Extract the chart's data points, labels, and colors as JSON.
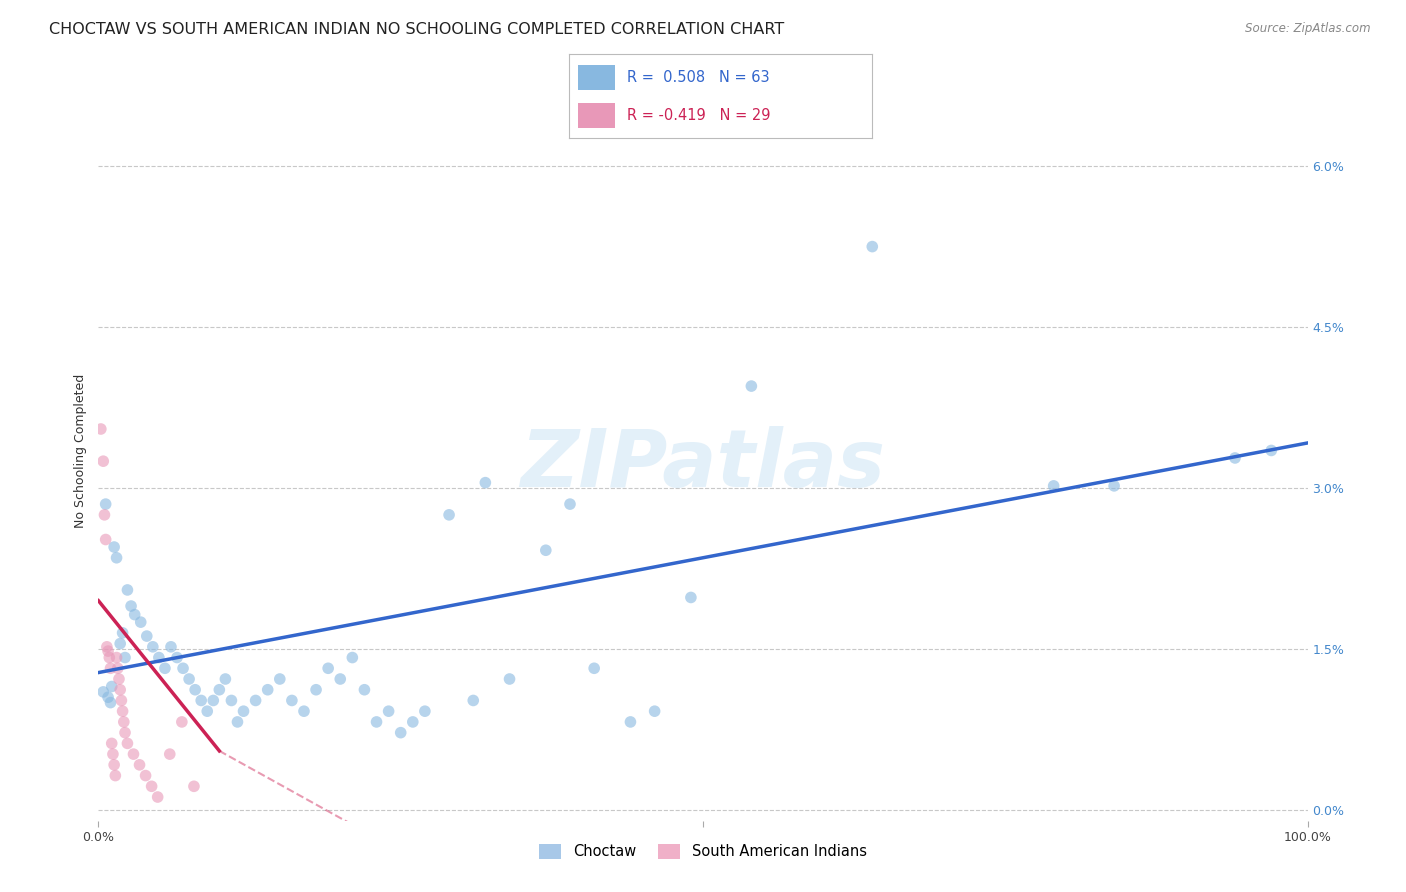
{
  "title": "CHOCTAW VS SOUTH AMERICAN INDIAN NO SCHOOLING COMPLETED CORRELATION CHART",
  "source": "Source: ZipAtlas.com",
  "ylabel": "No Schooling Completed",
  "y_tick_values_right": [
    0.0,
    1.5,
    3.0,
    4.5,
    6.0
  ],
  "x_range": [
    0,
    100
  ],
  "y_range": [
    -0.1,
    6.8
  ],
  "background_color": "#ffffff",
  "grid_color": "#c8c8c8",
  "watermark": "ZIPatlas",
  "bottom_legend": [
    "Choctaw",
    "South American Indians"
  ],
  "bottom_legend_colors": [
    "#a8c8e8",
    "#f0b0c8"
  ],
  "choctaw_color": "#88b8e0",
  "sam_color": "#e898b8",
  "choctaw_line_color": "#3366cc",
  "sam_line_color": "#cc2255",
  "choctaw_scatter": [
    [
      0.4,
      1.1
    ],
    [
      0.6,
      2.85
    ],
    [
      0.8,
      1.05
    ],
    [
      1.0,
      1.0
    ],
    [
      1.1,
      1.15
    ],
    [
      1.3,
      2.45
    ],
    [
      1.5,
      2.35
    ],
    [
      1.8,
      1.55
    ],
    [
      2.0,
      1.65
    ],
    [
      2.2,
      1.42
    ],
    [
      2.4,
      2.05
    ],
    [
      2.7,
      1.9
    ],
    [
      3.0,
      1.82
    ],
    [
      3.5,
      1.75
    ],
    [
      4.0,
      1.62
    ],
    [
      4.5,
      1.52
    ],
    [
      5.0,
      1.42
    ],
    [
      5.5,
      1.32
    ],
    [
      6.0,
      1.52
    ],
    [
      6.5,
      1.42
    ],
    [
      7.0,
      1.32
    ],
    [
      7.5,
      1.22
    ],
    [
      8.0,
      1.12
    ],
    [
      8.5,
      1.02
    ],
    [
      9.0,
      0.92
    ],
    [
      9.5,
      1.02
    ],
    [
      10.0,
      1.12
    ],
    [
      10.5,
      1.22
    ],
    [
      11.0,
      1.02
    ],
    [
      11.5,
      0.82
    ],
    [
      12.0,
      0.92
    ],
    [
      13.0,
      1.02
    ],
    [
      14.0,
      1.12
    ],
    [
      15.0,
      1.22
    ],
    [
      16.0,
      1.02
    ],
    [
      17.0,
      0.92
    ],
    [
      18.0,
      1.12
    ],
    [
      19.0,
      1.32
    ],
    [
      20.0,
      1.22
    ],
    [
      21.0,
      1.42
    ],
    [
      22.0,
      1.12
    ],
    [
      23.0,
      0.82
    ],
    [
      24.0,
      0.92
    ],
    [
      25.0,
      0.72
    ],
    [
      26.0,
      0.82
    ],
    [
      27.0,
      0.92
    ],
    [
      29.0,
      2.75
    ],
    [
      31.0,
      1.02
    ],
    [
      32.0,
      3.05
    ],
    [
      34.0,
      1.22
    ],
    [
      37.0,
      2.42
    ],
    [
      39.0,
      2.85
    ],
    [
      41.0,
      1.32
    ],
    [
      44.0,
      0.82
    ],
    [
      46.0,
      0.92
    ],
    [
      49.0,
      1.98
    ],
    [
      54.0,
      3.95
    ],
    [
      64.0,
      5.25
    ],
    [
      79.0,
      3.02
    ],
    [
      84.0,
      3.02
    ],
    [
      94.0,
      3.28
    ],
    [
      97.0,
      3.35
    ]
  ],
  "sam_scatter": [
    [
      0.2,
      3.55
    ],
    [
      0.4,
      3.25
    ],
    [
      0.5,
      2.75
    ],
    [
      0.6,
      2.52
    ],
    [
      0.7,
      1.52
    ],
    [
      0.8,
      1.48
    ],
    [
      0.9,
      1.42
    ],
    [
      1.0,
      1.32
    ],
    [
      1.1,
      0.62
    ],
    [
      1.2,
      0.52
    ],
    [
      1.3,
      0.42
    ],
    [
      1.4,
      0.32
    ],
    [
      1.5,
      1.42
    ],
    [
      1.6,
      1.32
    ],
    [
      1.7,
      1.22
    ],
    [
      1.8,
      1.12
    ],
    [
      1.9,
      1.02
    ],
    [
      2.0,
      0.92
    ],
    [
      2.1,
      0.82
    ],
    [
      2.2,
      0.72
    ],
    [
      2.4,
      0.62
    ],
    [
      2.9,
      0.52
    ],
    [
      3.4,
      0.42
    ],
    [
      3.9,
      0.32
    ],
    [
      4.4,
      0.22
    ],
    [
      4.9,
      0.12
    ],
    [
      5.9,
      0.52
    ],
    [
      6.9,
      0.82
    ],
    [
      7.9,
      0.22
    ]
  ],
  "choctaw_line": {
    "x_start": 0,
    "x_end": 100,
    "y_start": 1.28,
    "y_end": 3.42
  },
  "sam_line": {
    "x_start": 0,
    "x_end": 10,
    "y_start": 1.95,
    "y_end": 0.55
  },
  "sam_line_dash": {
    "x_start": 10,
    "x_end": 22,
    "y_start": 0.55,
    "y_end": -0.2
  },
  "title_fontsize": 11.5,
  "axis_fontsize": 9,
  "tick_fontsize": 9,
  "marker_size": 70,
  "marker_alpha": 0.6
}
